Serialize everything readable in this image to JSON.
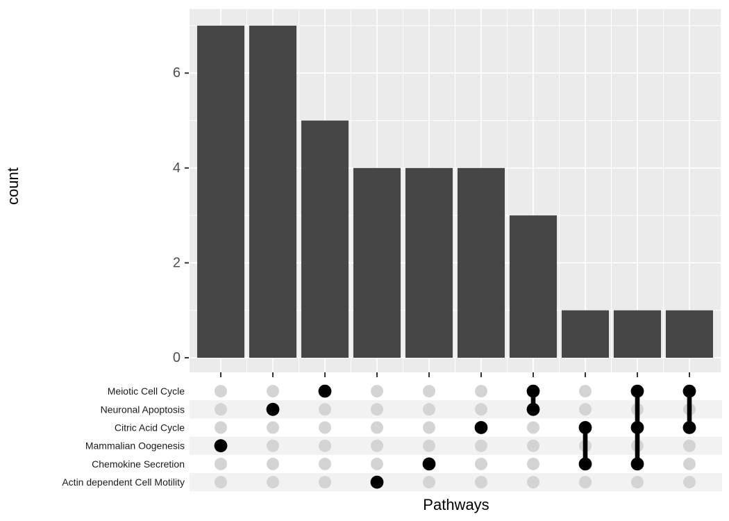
{
  "chart_data": {
    "type": "bar",
    "subtype": "upset",
    "title": "",
    "xlabel": "Pathways",
    "ylabel": "count",
    "y_ticks": [
      0,
      2,
      4,
      6
    ],
    "y_minor_ticks": [
      1,
      3,
      5,
      7
    ],
    "ylim": [
      0,
      7.35
    ],
    "grid": true,
    "legend": false,
    "sets": [
      "Meiotic Cell Cycle",
      "Neuronal Apoptosis",
      "Citric Acid Cycle",
      "Mammalian Oogenesis",
      "Chemokine Secretion",
      "Actin dependent Cell Motility"
    ],
    "combinations": [
      {
        "members": [
          "Mammalian Oogenesis"
        ],
        "count": 7
      },
      {
        "members": [
          "Neuronal Apoptosis"
        ],
        "count": 7
      },
      {
        "members": [
          "Meiotic Cell Cycle"
        ],
        "count": 5
      },
      {
        "members": [
          "Actin dependent Cell Motility"
        ],
        "count": 4
      },
      {
        "members": [
          "Chemokine Secretion"
        ],
        "count": 4
      },
      {
        "members": [
          "Citric Acid Cycle"
        ],
        "count": 4
      },
      {
        "members": [
          "Meiotic Cell Cycle",
          "Neuronal Apoptosis"
        ],
        "count": 3
      },
      {
        "members": [
          "Citric Acid Cycle",
          "Chemokine Secretion"
        ],
        "count": 1
      },
      {
        "members": [
          "Meiotic Cell Cycle",
          "Citric Acid Cycle",
          "Chemokine Secretion"
        ],
        "count": 1
      },
      {
        "members": [
          "Meiotic Cell Cycle",
          "Citric Acid Cycle"
        ],
        "count": 1
      }
    ]
  },
  "colors": {
    "panel_bg": "#EBEBEB",
    "gridline": "#FFFFFF",
    "bar": "#464646",
    "dot_inactive": "#D4D4D4",
    "dot_active": "#000000",
    "link": "#000000",
    "row_stripe": "#F2F2F2",
    "tick_mark": "#333333",
    "tick_label": "#4D4D4D",
    "axis_title": "#000000"
  }
}
